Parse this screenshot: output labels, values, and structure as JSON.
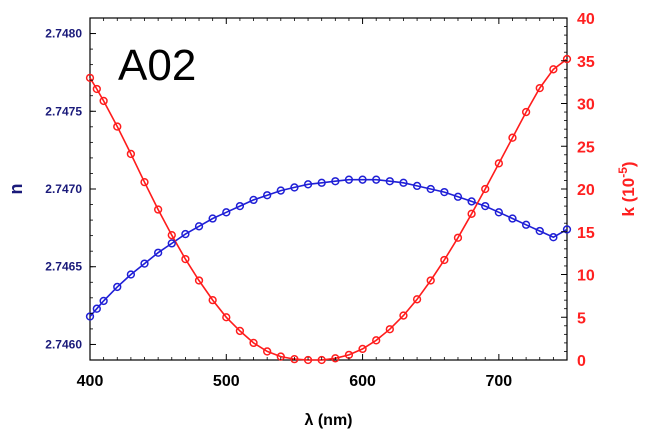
{
  "chart_data": {
    "type": "scatter",
    "sample_label": "A02",
    "xlabel": "λ (nm)",
    "ylabel_left": "n",
    "ylabel_right_prefix": "k (10",
    "ylabel_right_exp": "-5",
    "ylabel_right_suffix": ")",
    "xlim": [
      400,
      750
    ],
    "ylim_left": [
      2.7459,
      2.7481
    ],
    "ylim_right": [
      0,
      40
    ],
    "xticks": [
      400,
      500,
      600,
      700
    ],
    "yticks_left": [
      "2.7460",
      "2.7465",
      "2.7470",
      "2.7475",
      "2.7480"
    ],
    "yticks_right": [
      0,
      5,
      10,
      15,
      20,
      25,
      30,
      35,
      40
    ],
    "grid": false,
    "series": [
      {
        "axis": "left",
        "color": "#1f1fd6",
        "x": [
          400,
          405,
          410,
          420,
          430,
          440,
          450,
          460,
          470,
          480,
          490,
          500,
          510,
          520,
          530,
          540,
          550,
          560,
          570,
          580,
          590,
          600,
          610,
          620,
          630,
          640,
          650,
          660,
          670,
          680,
          690,
          700,
          710,
          720,
          730,
          740,
          750
        ],
        "y": [
          2.74618,
          2.74623,
          2.74628,
          2.74637,
          2.74645,
          2.74652,
          2.74659,
          2.74665,
          2.74671,
          2.74676,
          2.74681,
          2.74685,
          2.74689,
          2.74693,
          2.74696,
          2.74699,
          2.74701,
          2.74703,
          2.74704,
          2.74705,
          2.74706,
          2.74706,
          2.74706,
          2.74705,
          2.74704,
          2.74702,
          2.747,
          2.74698,
          2.74695,
          2.74692,
          2.74689,
          2.74685,
          2.74681,
          2.74677,
          2.74673,
          2.74669,
          2.74674
        ]
      },
      {
        "axis": "right",
        "color": "#ff1c1c",
        "x": [
          400,
          405,
          410,
          420,
          430,
          440,
          450,
          460,
          470,
          480,
          490,
          500,
          510,
          520,
          530,
          540,
          550,
          560,
          570,
          580,
          590,
          600,
          610,
          620,
          630,
          640,
          650,
          660,
          670,
          680,
          690,
          700,
          710,
          720,
          730,
          740,
          750
        ],
        "y": [
          33.0,
          31.7,
          30.3,
          27.3,
          24.1,
          20.8,
          17.6,
          14.6,
          11.8,
          9.3,
          7.0,
          5.0,
          3.4,
          2.0,
          1.0,
          0.4,
          0.1,
          0.0,
          0.0,
          0.2,
          0.6,
          1.3,
          2.3,
          3.6,
          5.2,
          7.1,
          9.3,
          11.7,
          14.3,
          17.1,
          20.0,
          23.0,
          26.0,
          29.0,
          31.8,
          34.0,
          35.2
        ]
      }
    ]
  }
}
